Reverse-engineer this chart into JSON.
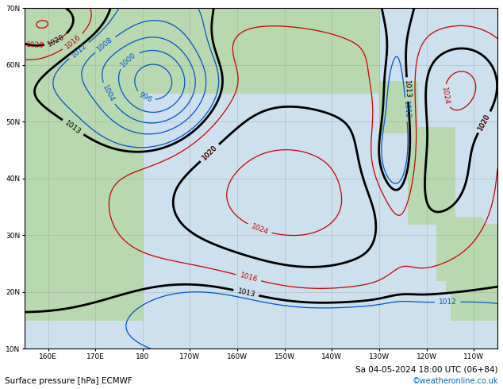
{
  "title": "Surface pressure [hPa] ECMWF",
  "date_label": "Sa 04-05-2024 18:00 UTC (06+84)",
  "copyright": "©weatheronline.co.uk",
  "background_ocean": "#cce0ee",
  "background_land": "#b8d8b0",
  "grid_color": "#999999",
  "contour_black_color": "#000000",
  "contour_red_color": "#cc0000",
  "contour_blue_color": "#0055cc",
  "label_fontsize": 6.5,
  "lon_min": 155,
  "lon_max": 255,
  "lat_min": 10,
  "lat_max": 70
}
